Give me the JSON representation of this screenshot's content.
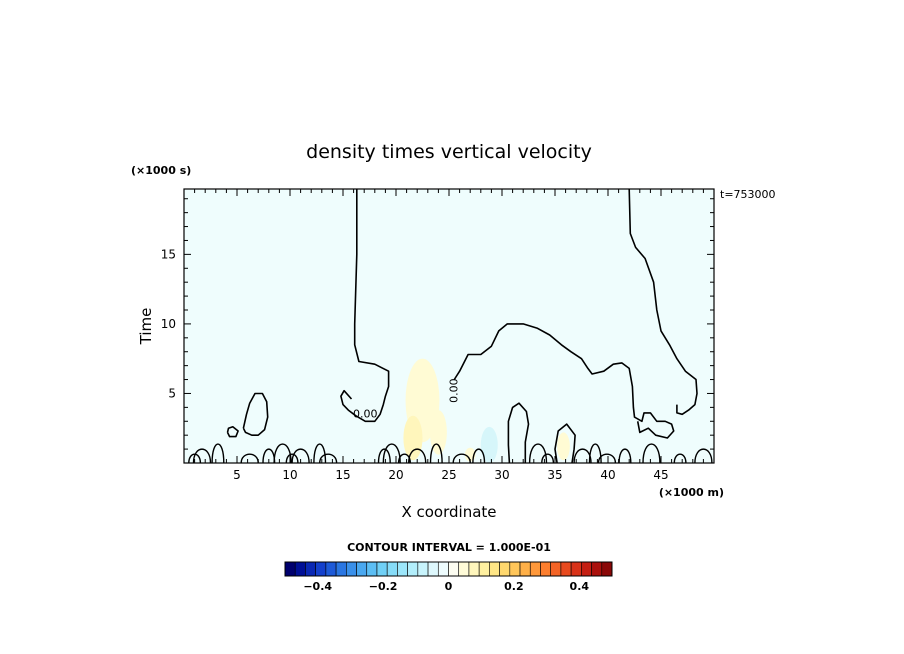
{
  "chart_data": {
    "type": "contour",
    "title": "density times vertical velocity",
    "xlabel": "X coordinate",
    "ylabel": "Time",
    "x_unit": "(×1000 m)",
    "y_unit": "(×1000 s)",
    "time_stamp": "t=753000",
    "xlim": [
      0,
      50
    ],
    "ylim": [
      0,
      19.7
    ],
    "x_ticks": [
      5,
      10,
      15,
      20,
      25,
      30,
      35,
      40,
      45
    ],
    "y_ticks": [
      5,
      10,
      15
    ],
    "contour_interval_label": "CONTOUR INTERVAL = 1.000E-01",
    "contour_labels": [
      {
        "text": "0.00",
        "x": 17.1,
        "y": 3.5
      },
      {
        "text": "0.00",
        "x": 25.5,
        "y": 5.2,
        "rotated": true
      }
    ],
    "zero_contours": [
      [
        [
          16.3,
          19.7
        ],
        [
          16.3,
          15
        ],
        [
          16.1,
          10
        ],
        [
          16.1,
          8.5
        ],
        [
          16.5,
          7.3
        ],
        [
          18.0,
          7.1
        ],
        [
          19.3,
          6.6
        ],
        [
          19.3,
          5.5
        ],
        [
          19.0,
          4.8
        ],
        [
          18.8,
          4.2
        ],
        [
          18.5,
          3.5
        ],
        [
          18.0,
          3.0
        ],
        [
          17.1,
          3.0
        ],
        [
          16.2,
          3.4
        ],
        [
          15.5,
          3.8
        ],
        [
          15.0,
          4.2
        ],
        [
          14.8,
          4.8
        ],
        [
          15.1,
          5.2
        ],
        [
          15.8,
          4.6
        ]
      ],
      [
        [
          25.5,
          6.0
        ],
        [
          26.0,
          6.6
        ],
        [
          26.8,
          7.8
        ],
        [
          28.0,
          7.8
        ],
        [
          29.0,
          8.4
        ],
        [
          29.7,
          9.5
        ],
        [
          30.5,
          10.0
        ],
        [
          32.0,
          10.0
        ],
        [
          33.3,
          9.7
        ],
        [
          34.5,
          9.2
        ],
        [
          35.6,
          8.5
        ],
        [
          36.5,
          8.0
        ],
        [
          37.5,
          7.5
        ],
        [
          38.1,
          6.8
        ],
        [
          38.5,
          6.4
        ],
        [
          39.6,
          6.6
        ],
        [
          40.5,
          7.1
        ],
        [
          41.3,
          7.2
        ],
        [
          42.0,
          6.8
        ],
        [
          42.3,
          5.5
        ],
        [
          42.4,
          4.0
        ],
        [
          42.5,
          3.3
        ],
        [
          43.2,
          3.0
        ],
        [
          43.4,
          3.6
        ],
        [
          44.0,
          3.6
        ],
        [
          44.6,
          3.0
        ],
        [
          45.4,
          3.0
        ],
        [
          46.0,
          2.8
        ],
        [
          46.2,
          2.3
        ],
        [
          45.6,
          1.8
        ],
        [
          44.5,
          2.0
        ],
        [
          43.8,
          2.5
        ],
        [
          43.0,
          2.2
        ],
        [
          42.8,
          3.0
        ]
      ],
      [
        [
          42.0,
          19.7
        ],
        [
          42.1,
          16.5
        ],
        [
          42.6,
          15.5
        ],
        [
          43.5,
          14.7
        ],
        [
          44.3,
          13.0
        ],
        [
          44.6,
          11.0
        ],
        [
          45.0,
          9.5
        ],
        [
          45.8,
          8.5
        ],
        [
          46.5,
          7.5
        ],
        [
          47.3,
          6.6
        ],
        [
          48.3,
          6.0
        ],
        [
          48.4,
          5.0
        ],
        [
          48.2,
          4.2
        ],
        [
          47.6,
          3.8
        ],
        [
          47.0,
          3.5
        ],
        [
          46.5,
          3.6
        ],
        [
          46.5,
          4.2
        ]
      ],
      [
        [
          5.6,
          2.5
        ],
        [
          5.9,
          3.5
        ],
        [
          6.2,
          4.3
        ],
        [
          6.7,
          5.0
        ],
        [
          7.4,
          5.0
        ],
        [
          7.8,
          4.4
        ],
        [
          7.9,
          3.3
        ],
        [
          7.6,
          2.4
        ],
        [
          7.0,
          2.0
        ],
        [
          6.4,
          2.0
        ],
        [
          5.8,
          2.2
        ],
        [
          5.6,
          2.5
        ]
      ],
      [
        [
          4.1,
          2.2
        ],
        [
          4.2,
          2.5
        ],
        [
          4.6,
          2.6
        ],
        [
          5.1,
          2.3
        ],
        [
          4.9,
          1.9
        ],
        [
          4.3,
          1.9
        ],
        [
          4.1,
          2.2
        ]
      ],
      [
        [
          30.7,
          0.0
        ],
        [
          30.6,
          1.3
        ],
        [
          30.6,
          3.0
        ],
        [
          31.0,
          4.0
        ],
        [
          31.6,
          4.3
        ],
        [
          32.3,
          3.7
        ],
        [
          32.5,
          2.8
        ],
        [
          32.2,
          1.5
        ],
        [
          32.2,
          0.0
        ]
      ],
      [
        [
          35.2,
          0.0
        ],
        [
          35.0,
          1.0
        ],
        [
          35.3,
          2.3
        ],
        [
          36.1,
          2.8
        ],
        [
          36.9,
          2.0
        ],
        [
          36.8,
          1.0
        ],
        [
          36.6,
          0.0
        ]
      ]
    ],
    "colorbar": {
      "ticks": [
        "−0.4",
        "−0.2",
        "0",
        "0.2",
        "0.4"
      ],
      "range": [
        -0.5,
        0.5
      ],
      "colors": [
        "#00006e",
        "#000f96",
        "#0a28b4",
        "#1440cc",
        "#1e5ad8",
        "#2a76e2",
        "#3a90ea",
        "#4aa8f0",
        "#5cbef4",
        "#70d0f6",
        "#86dcf8",
        "#9ce6fa",
        "#b2eefb",
        "#c8f4fc",
        "#def8fd",
        "#eefcfe",
        "#fdfdf2",
        "#fffbd8",
        "#fff6bc",
        "#fff0a0",
        "#ffe686",
        "#ffd86e",
        "#ffc65a",
        "#ffb048",
        "#ff983a",
        "#fc7e2e",
        "#f46426",
        "#e84a1e",
        "#d83218",
        "#c41e12",
        "#aa100c",
        "#8a0808"
      ]
    }
  }
}
